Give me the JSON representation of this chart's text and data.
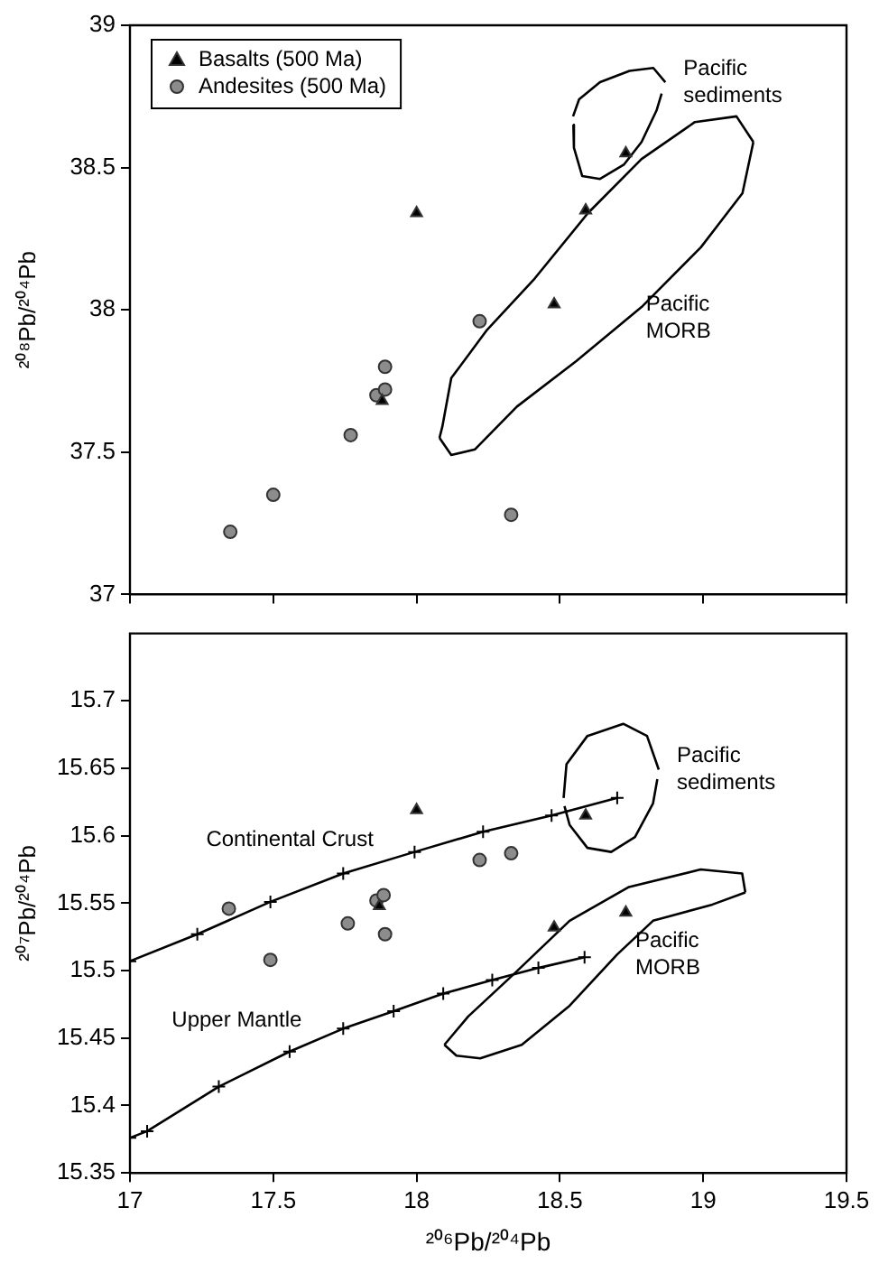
{
  "chart_data": [
    {
      "type": "scatter",
      "ylabel": "²⁰⁸Pb/²⁰⁴Pb",
      "xlim": [
        17,
        19.5
      ],
      "ylim": [
        37,
        39
      ],
      "xticks": [
        17,
        17.5,
        18,
        18.5,
        19,
        19.5
      ],
      "yticks": [
        37,
        37.5,
        38,
        38.5,
        39
      ],
      "tick_labels": "y",
      "grid": false,
      "legend": "top left",
      "series": [
        {
          "name": "Basalts (500 Ma)",
          "marker": "triangle",
          "color": "#000000",
          "x": [
            18.0,
            18.59,
            18.73,
            18.48,
            17.88
          ],
          "values": [
            38.34,
            38.35,
            38.55,
            38.02,
            37.68
          ]
        },
        {
          "name": "Andesites (500 Ma)",
          "marker": "circle",
          "color": "#8c8c8c",
          "x": [
            17.35,
            17.5,
            17.77,
            17.86,
            17.89,
            17.89,
            18.22,
            18.33
          ],
          "values": [
            37.22,
            37.35,
            37.56,
            37.7,
            37.72,
            37.8,
            37.96,
            37.28
          ]
        },
        {
          "type": "line",
          "marker": "none",
          "color": "#000000",
          "x": [
            18.546,
            18.567,
            18.64,
            18.743,
            18.826,
            18.868
          ],
          "values": [
            38.68,
            38.74,
            38.8,
            38.84,
            38.85,
            38.8
          ]
        },
        {
          "type": "line",
          "marker": "none",
          "color": "#000000",
          "x": [
            18.547,
            18.549,
            18.578,
            18.64,
            18.723,
            18.785,
            18.837,
            18.855
          ],
          "values": [
            38.65,
            38.57,
            38.47,
            38.46,
            38.51,
            38.59,
            38.7,
            38.76
          ]
        },
        {
          "type": "line",
          "marker": "none",
          "color": "#000000",
          "x": [
            18.08,
            18.09,
            18.121,
            18.246,
            18.412,
            18.598,
            18.785,
            18.971,
            19.116,
            19.175
          ],
          "values": [
            37.55,
            37.59,
            37.76,
            37.93,
            38.11,
            38.34,
            38.53,
            38.66,
            38.68,
            38.59
          ]
        },
        {
          "type": "line",
          "marker": "none",
          "color": "#000000",
          "x": [
            18.08,
            18.121,
            18.204,
            18.35,
            18.557,
            18.785,
            18.992,
            19.137,
            19.175
          ],
          "values": [
            37.55,
            37.49,
            37.51,
            37.66,
            37.82,
            38.01,
            38.22,
            38.41,
            38.59
          ]
        }
      ],
      "annotations": [
        {
          "text": "Pacific\nsediments",
          "x": 18.868,
          "y": 38.8
        },
        {
          "text": "Pacific\nMORB",
          "x": 18.737,
          "y": 37.97
        }
      ]
    },
    {
      "type": "scatter",
      "xlabel": "²⁰⁶Pb/²⁰⁴Pb",
      "ylabel": "²⁰⁷Pb/²⁰⁴Pb",
      "xlim": [
        17,
        19.5
      ],
      "ylim": [
        15.35,
        15.75
      ],
      "xticks": [
        17,
        17.5,
        18,
        18.5,
        19,
        19.5
      ],
      "yticks": [
        15.35,
        15.4,
        15.45,
        15.5,
        15.55,
        15.6,
        15.65,
        15.7
      ],
      "grid": false,
      "series": [
        {
          "marker": "triangle",
          "color": "#000000",
          "x": [
            18.0,
            18.59,
            18.73,
            18.48,
            17.87
          ],
          "values": [
            15.619,
            15.615,
            15.543,
            15.532,
            15.548
          ]
        },
        {
          "marker": "circle",
          "color": "#8c8c8c",
          "x": [
            17.345,
            17.49,
            17.76,
            17.86,
            17.885,
            17.89,
            18.22,
            18.33
          ],
          "values": [
            15.546,
            15.508,
            15.535,
            15.552,
            15.556,
            15.527,
            15.582,
            15.587
          ]
        },
        {
          "type": "line",
          "marker": "cross",
          "color": "#000000",
          "x": [
            17,
            17.235,
            17.49,
            17.744,
            17.993,
            18.232,
            18.471,
            18.7
          ],
          "values": [
            15.507,
            15.527,
            15.551,
            15.572,
            15.588,
            15.603,
            15.615,
            15.628
          ]
        },
        {
          "type": "line",
          "marker": "cross",
          "color": "#000000",
          "x": [
            17,
            17.06,
            17.31,
            17.557,
            17.744,
            17.92,
            18.093,
            18.264,
            18.425,
            18.586
          ],
          "values": [
            15.376,
            15.381,
            15.414,
            15.44,
            15.457,
            15.47,
            15.483,
            15.493,
            15.502,
            15.51
          ]
        },
        {
          "type": "line",
          "marker": "none",
          "color": "#000000",
          "x": [
            18.513,
            18.523,
            18.596,
            18.721,
            18.804,
            18.845
          ],
          "values": [
            15.628,
            15.653,
            15.674,
            15.683,
            15.674,
            15.649
          ]
        },
        {
          "type": "line",
          "marker": "none",
          "color": "#000000",
          "x": [
            18.516,
            18.534,
            18.596,
            18.679,
            18.762,
            18.825,
            18.84
          ],
          "values": [
            15.622,
            15.608,
            15.591,
            15.588,
            15.599,
            15.624,
            15.642
          ]
        },
        {
          "type": "line",
          "marker": "none",
          "color": "#000000",
          "x": [
            18.097,
            18.18,
            18.347,
            18.534,
            18.741,
            18.991,
            19.136,
            19.147
          ],
          "values": [
            15.445,
            15.466,
            15.499,
            15.537,
            15.562,
            15.575,
            15.572,
            15.558
          ]
        },
        {
          "type": "line",
          "marker": "none",
          "color": "#000000",
          "x": [
            18.097,
            18.139,
            18.222,
            18.367,
            18.534,
            18.7,
            18.825,
            19.032,
            19.147
          ],
          "values": [
            15.445,
            15.437,
            15.435,
            15.445,
            15.474,
            15.512,
            15.537,
            15.549,
            15.558
          ]
        }
      ],
      "annotations": [
        {
          "text": "Pacific\nsediments",
          "x": 18.845,
          "y": 15.649
        },
        {
          "text": "Pacific\nMORB",
          "x": 18.7,
          "y": 15.512
        },
        {
          "text": "Continental Crust",
          "x": 17.9,
          "y": 15.582
        },
        {
          "text": "Upper Mantle",
          "x": 17.65,
          "y": 15.4485
        }
      ]
    }
  ]
}
